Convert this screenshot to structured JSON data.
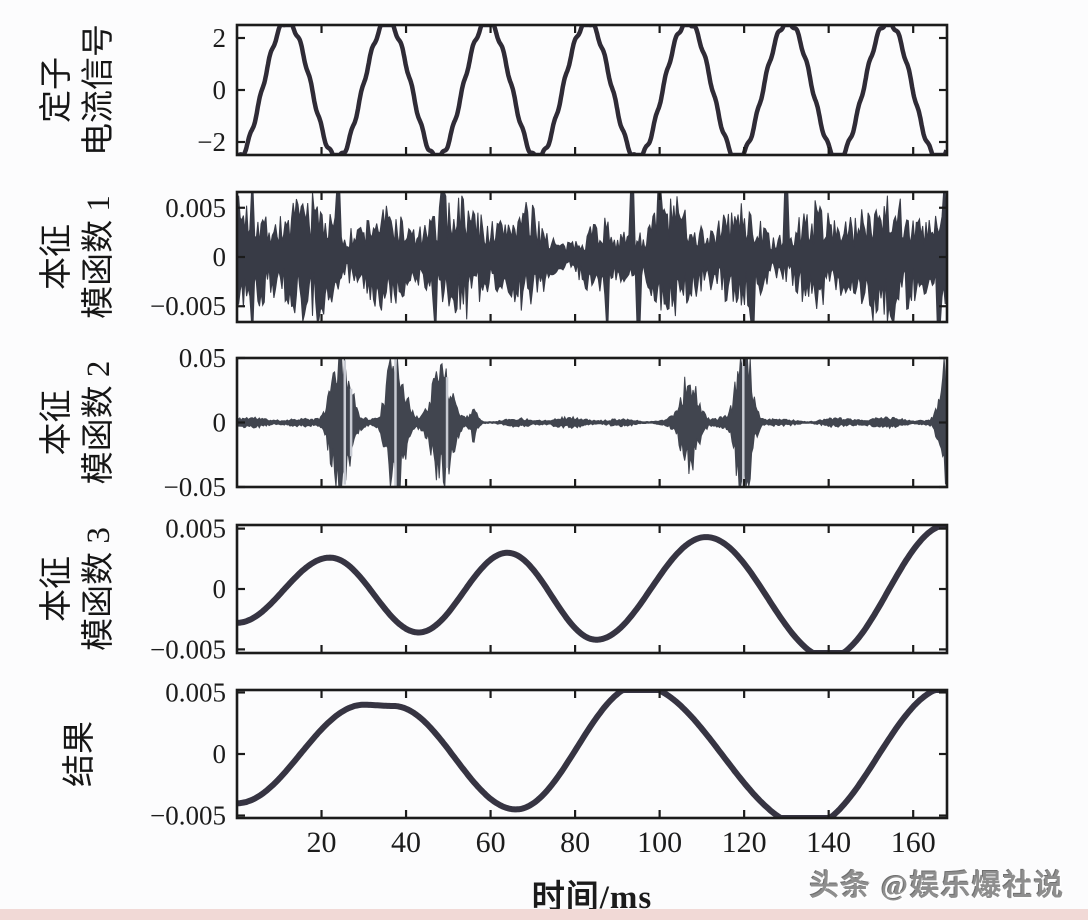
{
  "figure": {
    "bg_color": "#fcfcfd",
    "axis_color": "#1b1b1b",
    "line_color": "#2f2b36",
    "smooth_line_color": "#363442",
    "noise_fill_color": "#383b46",
    "burst_fill_color": "#41454f",
    "streak_color": "#c7cad2",
    "tick_label_color": "#1c1c1c",
    "bottom_strip_color": "#f1d9d6"
  },
  "watermark": {
    "text": "头条 @娱乐爆社说"
  },
  "chart_data": {
    "type": "line",
    "subtype": "multi-panel-time-series (EMD decomposition of stator current)",
    "xlabel": "时间/ms",
    "xlim": [
      0,
      168
    ],
    "xticks": [
      20,
      40,
      60,
      80,
      100,
      120,
      140,
      160
    ],
    "xtick_labels": [
      "20",
      "40",
      "60",
      "80",
      "100",
      "120",
      "140",
      "160"
    ],
    "grid": false,
    "legend": "none",
    "panels": [
      {
        "id": "stator-current-signal",
        "label_lines": [
          "定子",
          "电流信号"
        ],
        "type": "sine",
        "ylim": [
          -2.5,
          2.5
        ],
        "yticks": [
          2,
          0,
          -2
        ],
        "ytick_labels": [
          "2",
          "0",
          "−2"
        ],
        "sine": {
          "amplitude": 2.62,
          "period_ms": 23.7,
          "phase": "minimum-at-t0",
          "ripple_amplitude": 0.1,
          "ripple_period_ms": 2.4,
          "clipped_at": 2.5
        }
      },
      {
        "id": "imf1",
        "label_lines": [
          "本征",
          "模函数 1"
        ],
        "type": "noise",
        "ylim": [
          -0.0066,
          0.0066
        ],
        "yticks": [
          0.005,
          0,
          -0.005
        ],
        "ytick_labels": [
          "0.005",
          "0",
          "−0.005"
        ],
        "noise": {
          "base_amplitude": 0.0042,
          "spike_amplitude": 0.0078,
          "spikes_top_ms": [
            3.5,
            24,
            48.7,
            93.5,
            100,
            130,
            167.5
          ],
          "spikes_bottom_ms": [
            3.7,
            47,
            87.5,
            95,
            122,
            166
          ],
          "seed": 7
        }
      },
      {
        "id": "imf2",
        "label_lines": [
          "本征",
          "模函数 2"
        ],
        "type": "bursts",
        "ylim": [
          -0.05,
          0.05
        ],
        "yticks": [
          0.05,
          0,
          -0.05
        ],
        "ytick_labels": [
          "0.05",
          "0",
          "−0.05"
        ],
        "bursts": {
          "base_amplitude": 0.0035,
          "packets": [
            {
              "center_ms": 24.5,
              "width_ms": 2.8,
              "amplitude": 0.062
            },
            {
              "center_ms": 37.5,
              "width_ms": 2.5,
              "amplitude": 0.058
            },
            {
              "center_ms": 48.5,
              "width_ms": 3.0,
              "amplitude": 0.046
            },
            {
              "center_ms": 56.0,
              "width_ms": 1.0,
              "amplitude": 0.012
            },
            {
              "center_ms": 107.0,
              "width_ms": 2.6,
              "amplitude": 0.034
            },
            {
              "center_ms": 120.0,
              "width_ms": 2.2,
              "amplitude": 0.066
            },
            {
              "center_ms": 167.5,
              "width_ms": 1.6,
              "amplitude": 0.05
            }
          ],
          "streak_times_ms": [
            25.5,
            27,
            37.5,
            49.7,
            119.8
          ],
          "seed": 11
        }
      },
      {
        "id": "imf3",
        "label_lines": [
          "本征",
          "模函数 3"
        ],
        "type": "keypoints",
        "ylim": [
          -0.0053,
          0.0053
        ],
        "yticks": [
          0.005,
          0,
          -0.005
        ],
        "ytick_labels": [
          "0.005",
          "0",
          "−0.005"
        ],
        "keypoints": [
          [
            0,
            -0.0028
          ],
          [
            22,
            0.0026
          ],
          [
            43,
            -0.0036
          ],
          [
            64,
            0.003
          ],
          [
            85,
            -0.0042
          ],
          [
            111,
            0.0043
          ],
          [
            140,
            -0.0057
          ],
          [
            168,
            0.0053
          ]
        ]
      },
      {
        "id": "result",
        "label_lines": [
          "结果"
        ],
        "type": "keypoints",
        "ylim": [
          -0.0052,
          0.0052
        ],
        "yticks": [
          0.005,
          0,
          -0.005
        ],
        "ytick_labels": [
          "0.005",
          "0",
          "−0.005"
        ],
        "keypoints": [
          [
            0,
            -0.004
          ],
          [
            30,
            0.004
          ],
          [
            37,
            0.0039
          ],
          [
            66,
            -0.0045
          ],
          [
            95,
            0.0056
          ],
          [
            135,
            -0.0059
          ],
          [
            168,
            0.0054
          ]
        ]
      }
    ]
  }
}
